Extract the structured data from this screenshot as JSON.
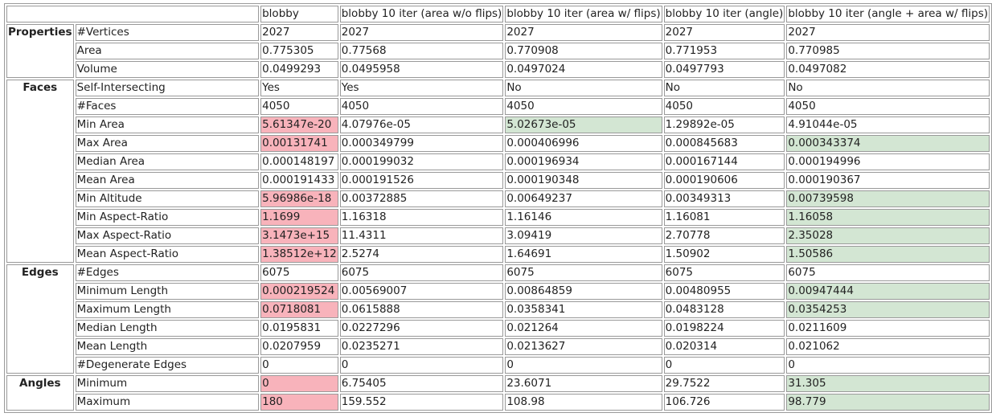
{
  "table": {
    "columns": [
      "blobby",
      "blobby 10 iter (area w/o flips)",
      "blobby 10 iter (area w/ flips)",
      "blobby 10 iter (angle)",
      "blobby 10 iter (angle + area w/ flips)"
    ],
    "sections": [
      {
        "name": "Properties",
        "rows": [
          [
            "#Vertices",
            "2027",
            "2027",
            "2027",
            "2027",
            "2027"
          ],
          [
            "Area",
            "0.775305",
            "0.77568",
            "0.770908",
            "0.771953",
            "0.770985"
          ],
          [
            "Volume",
            "0.0499293",
            "0.0495958",
            "0.0497024",
            "0.0497793",
            "0.0497082"
          ]
        ]
      },
      {
        "name": "Faces",
        "rows": [
          [
            "Self-Intersecting",
            "Yes",
            "Yes",
            "No",
            "No",
            "No"
          ],
          [
            "#Faces",
            "4050",
            "4050",
            "4050",
            "4050",
            "4050"
          ],
          [
            "Min Area",
            "5.61347e-20",
            "4.07976e-05",
            "5.02673e-05",
            "1.29892e-05",
            "4.91044e-05"
          ],
          [
            "Max Area",
            "0.00131741",
            "0.000349799",
            "0.000406996",
            "0.000845683",
            "0.000343374"
          ],
          [
            "Median Area",
            "0.000148197",
            "0.000199032",
            "0.000196934",
            "0.000167144",
            "0.000194996"
          ],
          [
            "Mean Area",
            "0.000191433",
            "0.000191526",
            "0.000190348",
            "0.000190606",
            "0.000190367"
          ],
          [
            "Min Altitude",
            "5.96986e-18",
            "0.00372885",
            "0.00649237",
            "0.00349313",
            "0.00739598"
          ],
          [
            "Min Aspect-Ratio",
            "1.1699",
            "1.16318",
            "1.16146",
            "1.16081",
            "1.16058"
          ],
          [
            "Max Aspect-Ratio",
            "3.1473e+15",
            "11.4311",
            "3.09419",
            "2.70778",
            "2.35028"
          ],
          [
            "Mean Aspect-Ratio",
            "1.38512e+12",
            "2.5274",
            "1.64691",
            "1.50902",
            "1.50586"
          ]
        ]
      },
      {
        "name": "Edges",
        "rows": [
          [
            "#Edges",
            "6075",
            "6075",
            "6075",
            "6075",
            "6075"
          ],
          [
            "Minimum Length",
            "0.000219524",
            "0.00569007",
            "0.00864859",
            "0.00480955",
            "0.00947444"
          ],
          [
            "Maximum Length",
            "0.0718081",
            "0.0615888",
            "0.0358341",
            "0.0483128",
            "0.0354253"
          ],
          [
            "Median Length",
            "0.0195831",
            "0.0227296",
            "0.021264",
            "0.0198224",
            "0.0211609"
          ],
          [
            "Mean Length",
            "0.0207959",
            "0.0235271",
            "0.0213627",
            "0.020314",
            "0.021062"
          ],
          [
            "#Degenerate Edges",
            "0",
            "0",
            "0",
            "0",
            "0"
          ]
        ]
      },
      {
        "name": "Angles",
        "rows": [
          [
            "Minimum",
            "0",
            "6.75405",
            "23.6071",
            "29.7522",
            "31.305"
          ],
          [
            "Maximum",
            "180",
            "159.552",
            "108.98",
            "106.726",
            "98.779"
          ]
        ]
      }
    ]
  }
}
